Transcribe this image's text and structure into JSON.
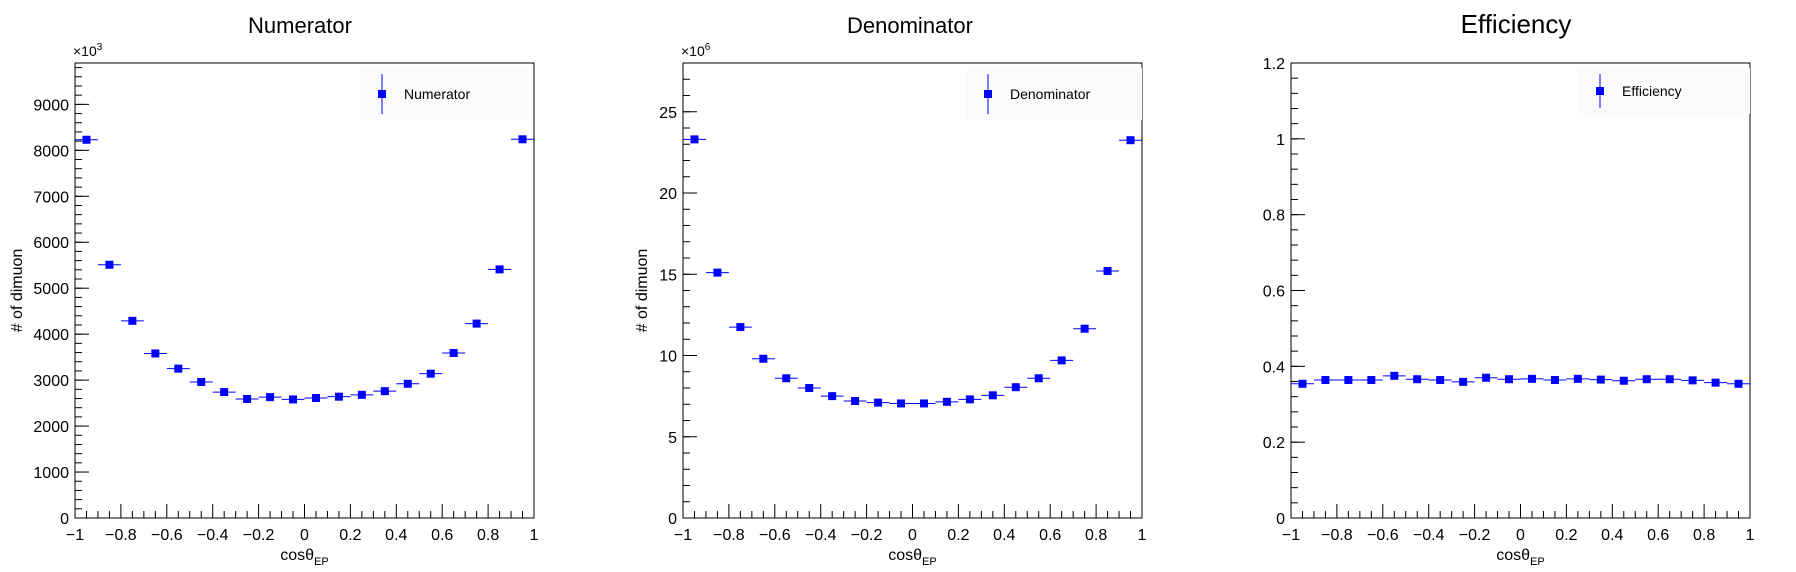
{
  "colors": {
    "marker": "#0000ff",
    "axis": "#000000",
    "background": "#ffffff",
    "legend_bg": "#fbfbfd"
  },
  "chart_data": [
    {
      "type": "scatter",
      "title": "Numerator",
      "xlabel": "cosθ",
      "xlabel_sub": "EP",
      "ylabel": "# of dimuon",
      "y_multiplier": "×10",
      "y_multiplier_exp": "3",
      "xlim": [
        -1,
        1
      ],
      "ylim": [
        0,
        9900
      ],
      "xticks": [
        -1,
        -0.8,
        -0.6,
        -0.4,
        -0.2,
        0,
        0.2,
        0.4,
        0.6,
        0.8,
        1
      ],
      "xtick_labels": [
        "−1",
        "−0.8",
        "−0.6",
        "−0.4",
        "−0.2",
        "0",
        "0.2",
        "0.4",
        "0.6",
        "0.8",
        "1"
      ],
      "yticks": [
        0,
        1000,
        2000,
        3000,
        4000,
        5000,
        6000,
        7000,
        8000,
        9000
      ],
      "ytick_labels": [
        "0",
        "1000",
        "2000",
        "3000",
        "4000",
        "5000",
        "6000",
        "7000",
        "8000",
        "9000"
      ],
      "y_minor_step": 200,
      "legend": "Numerator",
      "series": [
        {
          "name": "Numerator",
          "x": [
            -0.95,
            -0.85,
            -0.75,
            -0.65,
            -0.55,
            -0.45,
            -0.35,
            -0.25,
            -0.15,
            -0.05,
            0.05,
            0.15,
            0.25,
            0.35,
            0.45,
            0.55,
            0.65,
            0.75,
            0.85,
            0.95
          ],
          "y": [
            8230,
            5510,
            4290,
            3580,
            3250,
            2960,
            2740,
            2590,
            2630,
            2580,
            2610,
            2640,
            2680,
            2760,
            2920,
            3140,
            3590,
            4230,
            5410,
            8240
          ]
        }
      ]
    },
    {
      "type": "scatter",
      "title": "Denominator",
      "xlabel": "cosθ",
      "xlabel_sub": "EP",
      "ylabel": "# of dimuon",
      "y_multiplier": "×10",
      "y_multiplier_exp": "6",
      "xlim": [
        -1,
        1
      ],
      "ylim": [
        0,
        28
      ],
      "xticks": [
        -1,
        -0.8,
        -0.6,
        -0.4,
        -0.2,
        0,
        0.2,
        0.4,
        0.6,
        0.8,
        1
      ],
      "xtick_labels": [
        "−1",
        "−0.8",
        "−0.6",
        "−0.4",
        "−0.2",
        "0",
        "0.2",
        "0.4",
        "0.6",
        "0.8",
        "1"
      ],
      "yticks": [
        0,
        5,
        10,
        15,
        20,
        25
      ],
      "ytick_labels": [
        "0",
        "5",
        "10",
        "15",
        "20",
        "25"
      ],
      "y_minor_step": 1,
      "legend": "Denominator",
      "series": [
        {
          "name": "Denominator",
          "x": [
            -0.95,
            -0.85,
            -0.75,
            -0.65,
            -0.55,
            -0.45,
            -0.35,
            -0.25,
            -0.15,
            -0.05,
            0.05,
            0.15,
            0.25,
            0.35,
            0.45,
            0.55,
            0.65,
            0.75,
            0.85,
            0.95
          ],
          "y": [
            23.3,
            15.1,
            11.75,
            9.8,
            8.6,
            8.0,
            7.5,
            7.2,
            7.1,
            7.05,
            7.05,
            7.15,
            7.3,
            7.55,
            8.05,
            8.6,
            9.7,
            11.65,
            15.2,
            23.25
          ]
        }
      ]
    },
    {
      "type": "scatter",
      "title": "Efficiency",
      "xlabel": "cosθ",
      "xlabel_sub": "EP",
      "ylabel": "",
      "y_multiplier": "",
      "y_multiplier_exp": "",
      "xlim": [
        -1,
        1
      ],
      "ylim": [
        0,
        1.2
      ],
      "xticks": [
        -1,
        -0.8,
        -0.6,
        -0.4,
        -0.2,
        0,
        0.2,
        0.4,
        0.6,
        0.8,
        1
      ],
      "xtick_labels": [
        "−1",
        "−0.8",
        "−0.6",
        "−0.4",
        "−0.2",
        "0",
        "0.2",
        "0.4",
        "0.6",
        "0.8",
        "1"
      ],
      "yticks": [
        0,
        0.2,
        0.4,
        0.6,
        0.8,
        1,
        1.2
      ],
      "ytick_labels": [
        "0",
        "0.2",
        "0.4",
        "0.6",
        "0.8",
        "1",
        "1.2"
      ],
      "y_minor_step": 0.04,
      "legend": "Efficiency",
      "series": [
        {
          "name": "Efficiency",
          "x": [
            -0.95,
            -0.85,
            -0.75,
            -0.65,
            -0.55,
            -0.45,
            -0.35,
            -0.25,
            -0.15,
            -0.05,
            0.05,
            0.15,
            0.25,
            0.35,
            0.45,
            0.55,
            0.65,
            0.75,
            0.85,
            0.95
          ],
          "y": [
            0.354,
            0.364,
            0.364,
            0.364,
            0.375,
            0.366,
            0.364,
            0.359,
            0.37,
            0.366,
            0.367,
            0.364,
            0.367,
            0.365,
            0.362,
            0.366,
            0.366,
            0.363,
            0.357,
            0.354
          ]
        }
      ]
    }
  ]
}
